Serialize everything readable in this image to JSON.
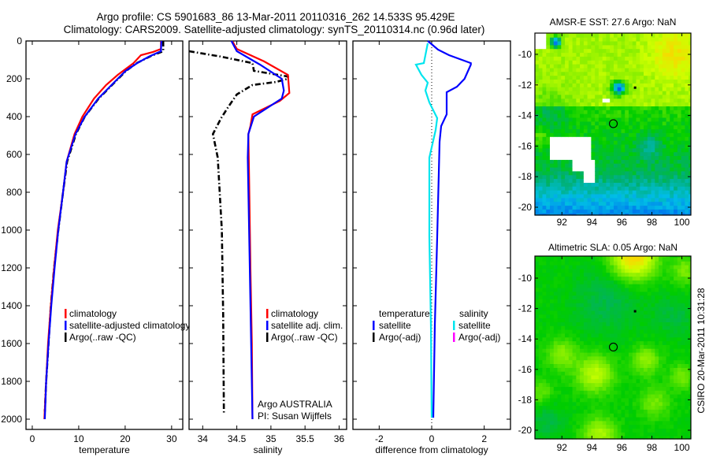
{
  "figure": {
    "title_line1": "Argo profile: CS 5901683_86 13-Mar-2011 20110316_262 14.533S 95.429E",
    "title_line2": "Climatology: CARS2009. Satellite-adjusted climatology: synTS_20110314.nc (0.96d later)",
    "side_stamp": "CSIRO 20-Mar-2011 10:31:28"
  },
  "chart_data": [
    {
      "id": "temperature",
      "type": "line",
      "xlabel": "temperature",
      "ylabel": "",
      "xlim": [
        -1.35,
        32.4
      ],
      "ylim": [
        2054,
        0
      ],
      "xticks": [
        "0",
        "10",
        "20",
        "30"
      ],
      "yticks": [
        "0",
        "200",
        "400",
        "600",
        "800",
        "1000",
        "1200",
        "1400",
        "1600",
        "1800",
        "2000"
      ],
      "legend": [
        "climatology",
        "satellite-adjusted climatology",
        "Argo(..raw -QC)"
      ],
      "series": [
        {
          "name": "Argo(..raw -QC)",
          "color": "#000000",
          "style": "dashdot",
          "points": [
            [
              0,
              28.2
            ],
            [
              54,
              28.2
            ],
            [
              80,
              25.5
            ],
            [
              117,
              22.5
            ],
            [
              158,
              20.2
            ],
            [
              242,
              16.8
            ],
            [
              304,
              14.3
            ],
            [
              400,
              11.3
            ],
            [
              492,
              9.4
            ],
            [
              638,
              7.5
            ],
            [
              804,
              6.6
            ],
            [
              1000,
              5.6
            ],
            [
              1200,
              4.7
            ],
            [
              1400,
              4.0
            ],
            [
              1600,
              3.5
            ],
            [
              1800,
              3.0
            ],
            [
              1960,
              2.7
            ]
          ]
        },
        {
          "name": "climatology",
          "color": "#ff0000",
          "style": "solid",
          "points": [
            [
              0,
              27.7
            ],
            [
              42,
              27.7
            ],
            [
              58,
              26.0
            ],
            [
              75,
              23.4
            ],
            [
              117,
              21.8
            ],
            [
              179,
              18.4
            ],
            [
              233,
              15.9
            ],
            [
              304,
              13.3
            ],
            [
              400,
              10.8
            ],
            [
              492,
              9.1
            ],
            [
              638,
              7.4
            ],
            [
              804,
              6.6
            ],
            [
              1000,
              5.5
            ],
            [
              1200,
              4.7
            ],
            [
              1400,
              4.0
            ],
            [
              1600,
              3.4
            ],
            [
              1800,
              3.0
            ],
            [
              2000,
              2.6
            ]
          ]
        },
        {
          "name": "satellite-adjusted climatology",
          "color": "#0000ff",
          "style": "solid",
          "points": [
            [
              0,
              27.8
            ],
            [
              54,
              27.7
            ],
            [
              83,
              25.1
            ],
            [
              117,
              22.6
            ],
            [
              158,
              20.1
            ],
            [
              242,
              16.7
            ],
            [
              304,
              14.2
            ],
            [
              400,
              11.3
            ],
            [
              492,
              9.3
            ],
            [
              638,
              7.4
            ],
            [
              804,
              6.6
            ],
            [
              1000,
              5.6
            ],
            [
              1200,
              4.8
            ],
            [
              1400,
              4.1
            ],
            [
              1600,
              3.5
            ],
            [
              1800,
              3.0
            ],
            [
              2000,
              2.7
            ]
          ]
        }
      ]
    },
    {
      "id": "salinity",
      "type": "line",
      "xlabel": "salinity",
      "xlim": [
        33.8,
        36.11
      ],
      "ylim": [
        2054,
        0
      ],
      "xticks": [
        "34",
        "34.5",
        "35",
        "35.5",
        "36"
      ],
      "legend": [
        "climatology",
        "satellite adj. clim.",
        "Argo(..raw -QC)"
      ],
      "annotation": [
        "Argo AUSTRALIA",
        "PI: Susan Wijffels"
      ],
      "series": [
        {
          "name": "Argo(..raw -QC)",
          "color": "#000000",
          "style": "dashdot",
          "points": [
            [
              54,
              33.8
            ],
            [
              83,
              34.27
            ],
            [
              117,
              34.73
            ],
            [
              158,
              34.75
            ],
            [
              188,
              35.25
            ],
            [
              200,
              35.25
            ],
            [
              217,
              35.07
            ],
            [
              233,
              34.73
            ],
            [
              283,
              34.5
            ],
            [
              346,
              34.38
            ],
            [
              408,
              34.27
            ],
            [
              492,
              34.15
            ],
            [
              617,
              34.22
            ],
            [
              1000,
              34.28
            ],
            [
              1450,
              34.3
            ],
            [
              1970,
              34.31
            ]
          ]
        },
        {
          "name": "climatology",
          "color": "#ff0000",
          "style": "solid",
          "points": [
            [
              4,
              34.44
            ],
            [
              42,
              34.5
            ],
            [
              108,
              34.9
            ],
            [
              179,
              35.25
            ],
            [
              275,
              35.27
            ],
            [
              317,
              35.13
            ],
            [
              388,
              34.73
            ],
            [
              450,
              34.7
            ],
            [
              492,
              34.67
            ],
            [
              720,
              34.68
            ],
            [
              1200,
              34.7
            ],
            [
              1600,
              34.72
            ],
            [
              2000,
              34.73
            ]
          ]
        },
        {
          "name": "satellite adj. clim.",
          "color": "#0000ff",
          "style": "solid",
          "points": [
            [
              0,
              34.42
            ],
            [
              54,
              34.5
            ],
            [
              125,
              34.84
            ],
            [
              200,
              35.16
            ],
            [
              262,
              35.19
            ],
            [
              304,
              35.16
            ],
            [
              400,
              34.75
            ],
            [
              492,
              34.67
            ],
            [
              617,
              34.66
            ],
            [
              1000,
              34.68
            ],
            [
              1600,
              34.71
            ],
            [
              2000,
              34.73
            ]
          ]
        }
      ]
    },
    {
      "id": "difference",
      "type": "line",
      "xlabel": "difference from climatology",
      "xlim": [
        -3,
        3
      ],
      "ylim": [
        2054,
        0
      ],
      "xticks": [
        "-2",
        "0",
        "2"
      ],
      "legend": {
        "temperature_heading": "temperature",
        "temperature_items": [
          "satellite",
          "Argo(-adj)"
        ],
        "salinity_heading": "salinity",
        "salinity_items": [
          "satellite",
          "Argo(-adj)"
        ]
      },
      "series": [
        {
          "name": "temperature satellite",
          "color": "#0000ff",
          "style": "solid",
          "points": [
            [
              0,
              -0.15
            ],
            [
              46,
              0.24
            ],
            [
              75,
              0.66
            ],
            [
              117,
              1.49
            ],
            [
              125,
              1.49
            ],
            [
              200,
              1.25
            ],
            [
              242,
              0.96
            ],
            [
              271,
              0.57
            ],
            [
              388,
              0.57
            ],
            [
              450,
              0.36
            ],
            [
              533,
              0.3
            ],
            [
              1033,
              0.21
            ],
            [
              1500,
              0.12
            ],
            [
              1992,
              0.06
            ]
          ]
        },
        {
          "name": "salinity satellite",
          "color": "#00e5ee",
          "style": "solid",
          "points": [
            [
              12,
              -0.15
            ],
            [
              117,
              -0.3
            ],
            [
              125,
              -0.6
            ],
            [
              179,
              -0.39
            ],
            [
              221,
              -0.15
            ],
            [
              262,
              -0.24
            ],
            [
              325,
              -0.09
            ],
            [
              408,
              0.21
            ],
            [
              471,
              0.15
            ],
            [
              617,
              -0.09
            ],
            [
              1033,
              -0.09
            ],
            [
              1500,
              -0.03
            ],
            [
              1992,
              0.0
            ]
          ]
        }
      ],
      "colors": {
        "temperature_argo": "#000000",
        "salinity_argo": "#ff00ff"
      }
    },
    {
      "id": "sst-map",
      "type": "heatmap",
      "title": "AMSR-E SST: 27.6 Argo: NaN",
      "xlim": [
        90.2,
        100.6
      ],
      "ylim": [
        -20.5,
        -8.6
      ],
      "xticks": [
        "92",
        "94",
        "96",
        "98",
        "100"
      ],
      "yticks": [
        "-10",
        "-12",
        "-14",
        "-16",
        "-18",
        "-20"
      ],
      "argo_position": {
        "lon": 95.429,
        "lat": -14.533
      }
    },
    {
      "id": "sla-map",
      "type": "heatmap",
      "title": "Altimetric SLA: 0.05 Argo: NaN",
      "xlim": [
        90.2,
        100.6
      ],
      "ylim": [
        -20.5,
        -8.6
      ],
      "xticks": [
        "92",
        "94",
        "96",
        "98",
        "100"
      ],
      "yticks": [
        "-10",
        "-12",
        "-14",
        "-16",
        "-18",
        "-20"
      ],
      "argo_position": {
        "lon": 95.429,
        "lat": -14.533
      }
    }
  ]
}
